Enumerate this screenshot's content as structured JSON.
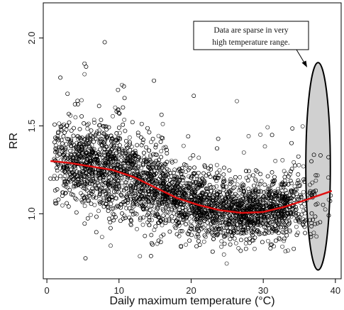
{
  "chart_data": {
    "type": "scatter",
    "title": "",
    "xlabel": "Daily maximum temperature (°C)",
    "ylabel": "RR",
    "xlim": [
      -0.5,
      40.8
    ],
    "ylim": [
      0.63,
      2.2
    ],
    "x_ticks": [
      0,
      10,
      20,
      30,
      40
    ],
    "x_tick_labels": [
      "0",
      "10",
      "20",
      "30",
      "40"
    ],
    "y_ticks": [
      1.0,
      1.5,
      2.0
    ],
    "y_tick_labels": [
      "1.0",
      "1.5",
      "2.0"
    ],
    "grid": false,
    "point_count": 5000,
    "marker": "open-circle",
    "fit_curve": {
      "color": "#e01010",
      "x": [
        0.5,
        3,
        6,
        9,
        12,
        15,
        18,
        21,
        24,
        27,
        30,
        33,
        36,
        39.5
      ],
      "y": [
        1.3,
        1.29,
        1.27,
        1.25,
        1.21,
        1.15,
        1.09,
        1.05,
        1.02,
        1.005,
        1.01,
        1.04,
        1.08,
        1.13
      ]
    },
    "highlight_ellipse": {
      "cx": 37.6,
      "cy": 1.27,
      "rx": 1.7,
      "ry": 0.59,
      "fill": "#d0d0d0"
    },
    "annotation": {
      "lines": [
        "Data are sparse in very",
        "high temperature range."
      ]
    }
  }
}
